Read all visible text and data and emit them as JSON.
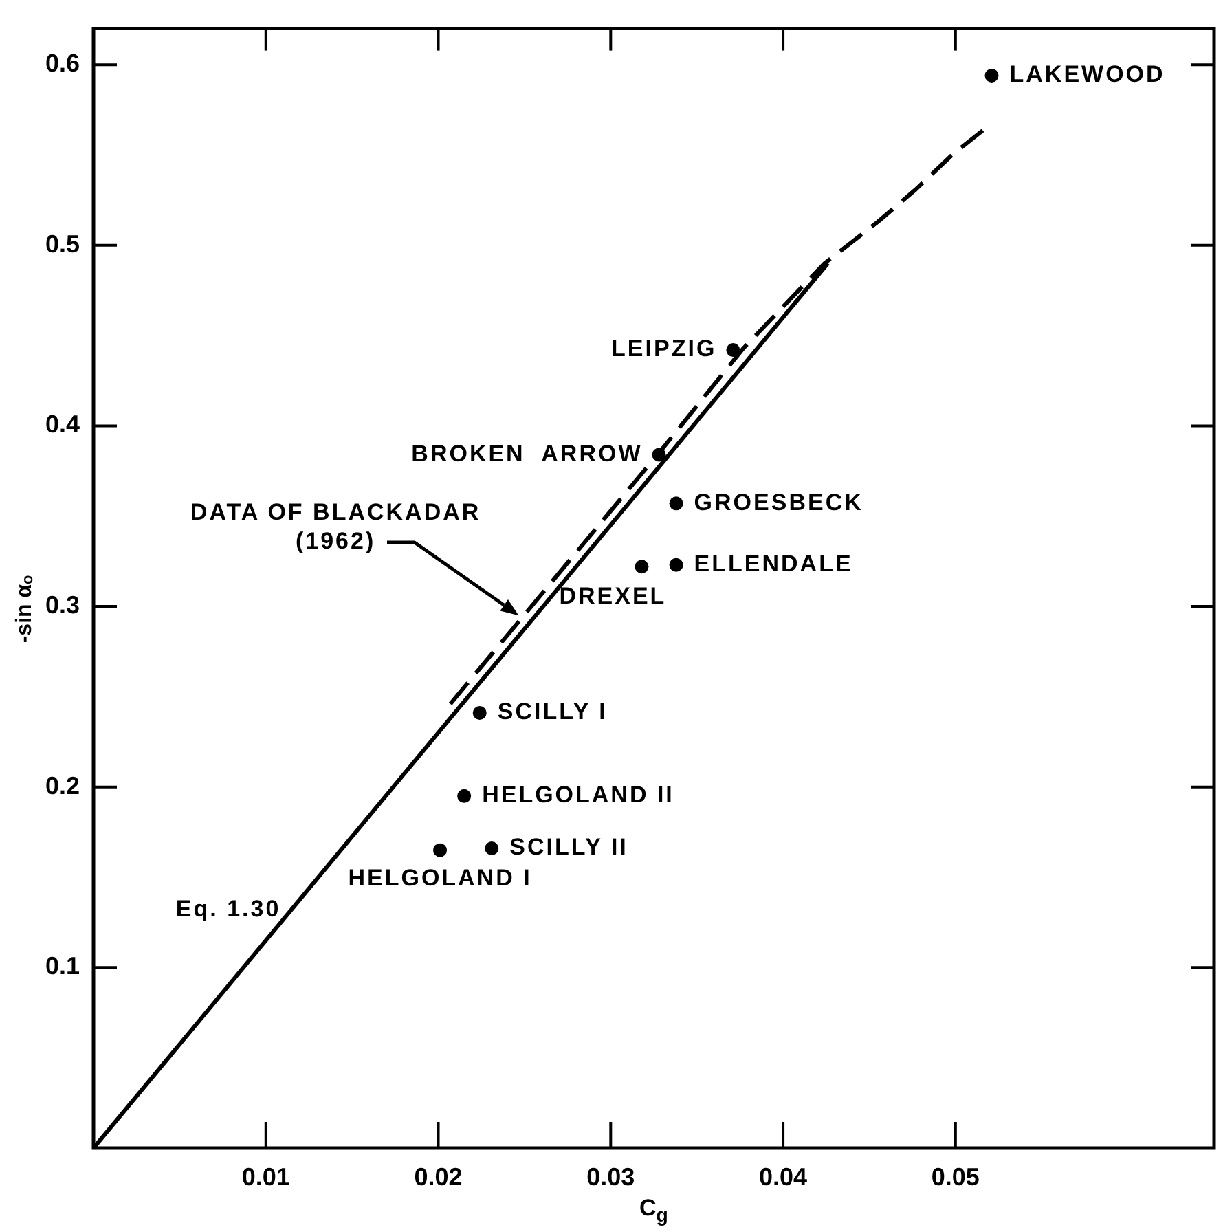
{
  "chart_data": {
    "type": "scatter",
    "xlabel": "C$_{g}$",
    "ylabel": "-sin αₒ",
    "xlim": [
      0,
      0.065
    ],
    "ylim": [
      0,
      0.62
    ],
    "xticks": [
      0.01,
      0.02,
      0.03,
      0.04,
      0.05
    ],
    "yticks": [
      0.1,
      0.2,
      0.3,
      0.4,
      0.5,
      0.6
    ],
    "series": [
      {
        "type": "line",
        "x": [
          0,
          0.0426
        ],
        "values": [
          0,
          0.49
        ],
        "color": "#000000",
        "line_style": "solid",
        "marker": "none"
      },
      {
        "type": "line",
        "x": [
          0.0207,
          0.0328,
          0.0377,
          0.0424,
          0.0455,
          0.0477,
          0.0498,
          0.0519
        ],
        "values": [
          0.246,
          0.385,
          0.443,
          0.49,
          0.513,
          0.531,
          0.55,
          0.566
        ],
        "color": "#000000",
        "line_style": "dashed",
        "marker": "none"
      },
      {
        "x": [
          0.0521,
          0.0371,
          0.0328,
          0.0338,
          0.0318,
          0.0338,
          0.0224,
          0.0215,
          0.0231,
          0.0201
        ],
        "values": [
          0.594,
          0.442,
          0.384,
          0.357,
          0.322,
          0.323,
          0.241,
          0.195,
          0.166,
          0.165
        ],
        "color": "#000000",
        "marker": "circle"
      }
    ],
    "annotations": [
      {
        "text": "LAKEWOOD",
        "x": 0.0521,
        "y": 0.594
      },
      {
        "text": "LEIPZIG",
        "x": 0.0371,
        "y": 0.442
      },
      {
        "text": "BROKEN  ARROW",
        "x": 0.0328,
        "y": 0.384
      },
      {
        "text": "GROESBECK",
        "x": 0.0338,
        "y": 0.357
      },
      {
        "text": "DREXEL",
        "x": 0.0318,
        "y": 0.322
      },
      {
        "text": "ELLENDALE",
        "x": 0.0338,
        "y": 0.323
      },
      {
        "text": "SCILLY I",
        "x": 0.0224,
        "y": 0.241
      },
      {
        "text": "HELGOLAND II",
        "x": 0.0215,
        "y": 0.195
      },
      {
        "text": "SCILLY II",
        "x": 0.0231,
        "y": 0.166
      },
      {
        "text": "HELGOLAND I",
        "x": 0.0201,
        "y": 0.165
      },
      "DATA OF BLACKADAR\n(1962)",
      {
        "text": "Eq. 1.30",
        "x": 0.0115,
        "y": 0.132
      }
    ]
  }
}
